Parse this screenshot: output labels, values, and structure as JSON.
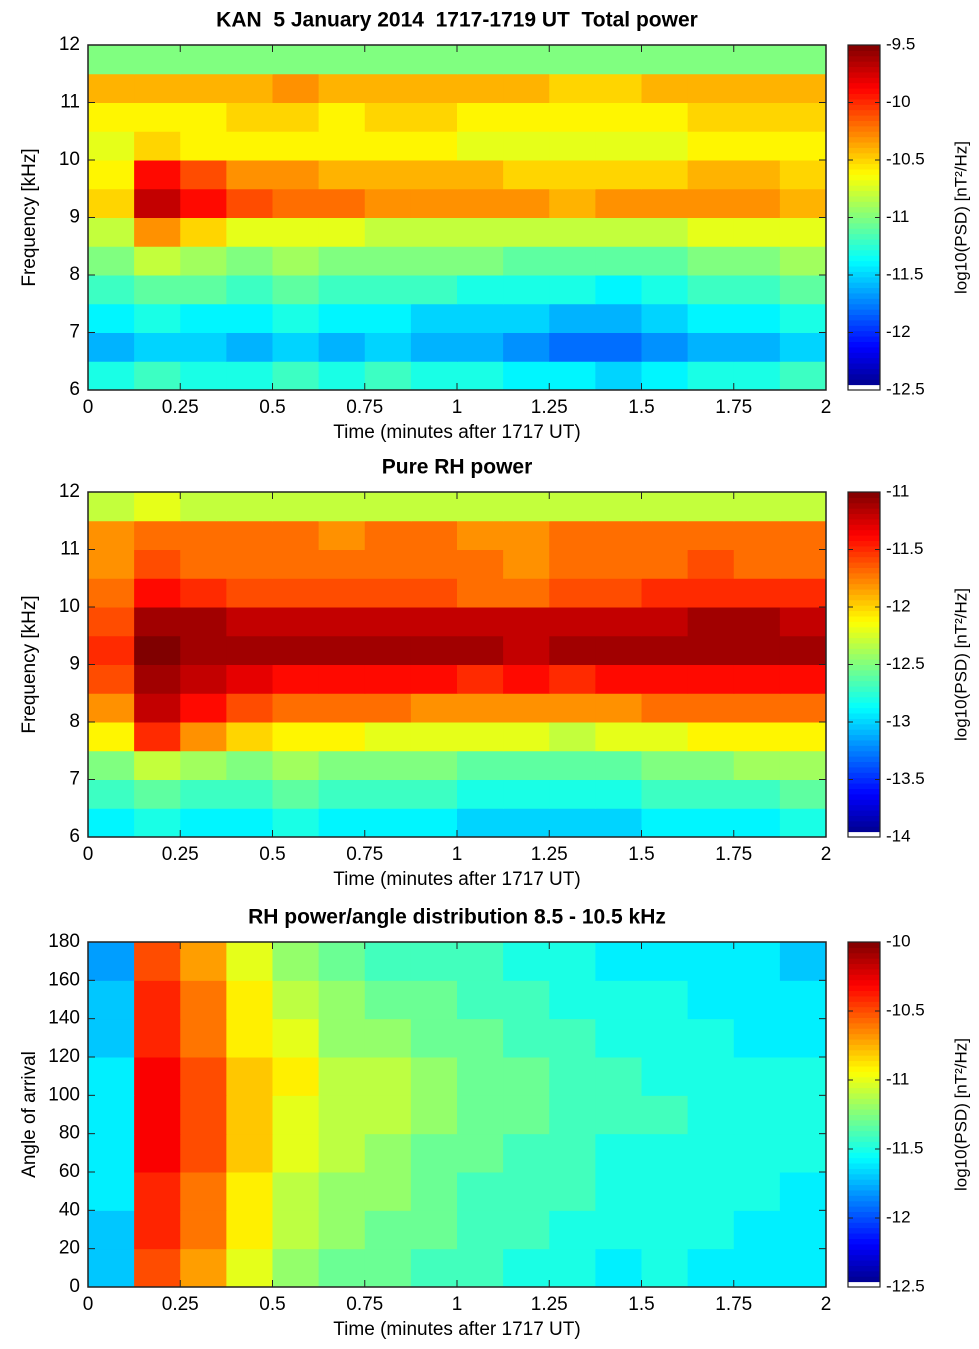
{
  "chart_data": [
    {
      "type": "heatmap",
      "title": "KAN  5 January 2014  1717-1719 UT  Total power",
      "xlabel": "Time (minutes after 1717 UT)",
      "ylabel": "Frequency [kHz]",
      "colorbar_label": "log10(PSD) [nT²/Hz]",
      "colormap": "jet",
      "xlim": [
        0,
        2
      ],
      "xticks": [
        0,
        0.25,
        0.5,
        0.75,
        1,
        1.25,
        1.5,
        1.75,
        2
      ],
      "ylim": [
        6,
        12
      ],
      "yticks": [
        6,
        7,
        8,
        9,
        10,
        11,
        12
      ],
      "clim": [
        -12.5,
        -9.5
      ],
      "cticks": [
        -12.5,
        -12,
        -11.5,
        -11,
        -10.5,
        -10,
        -9.5
      ],
      "x": [
        0.0625,
        0.1875,
        0.3125,
        0.4375,
        0.5625,
        0.6875,
        0.8125,
        0.9375,
        1.0625,
        1.1875,
        1.3125,
        1.4375,
        1.5625,
        1.6875,
        1.8125,
        1.9375
      ],
      "y": [
        6.25,
        6.75,
        7.25,
        7.75,
        8.25,
        8.75,
        9.25,
        9.75,
        10.25,
        10.75,
        11.25,
        11.75
      ],
      "z": [
        [
          -11.3,
          -11.2,
          -11.3,
          -11.3,
          -11.2,
          -11.3,
          -11.2,
          -11.3,
          -11.3,
          -11.4,
          -11.4,
          -11.5,
          -11.4,
          -11.3,
          -11.3,
          -11.2
        ],
        [
          -11.6,
          -11.5,
          -11.5,
          -11.6,
          -11.5,
          -11.6,
          -11.5,
          -11.6,
          -11.6,
          -11.7,
          -11.8,
          -11.8,
          -11.7,
          -11.6,
          -11.6,
          -11.5
        ],
        [
          -11.4,
          -11.3,
          -11.4,
          -11.4,
          -11.3,
          -11.4,
          -11.4,
          -11.5,
          -11.5,
          -11.5,
          -11.6,
          -11.6,
          -11.5,
          -11.4,
          -11.4,
          -11.3
        ],
        [
          -11.2,
          -11.1,
          -11.1,
          -11.2,
          -11.1,
          -11.2,
          -11.2,
          -11.2,
          -11.3,
          -11.3,
          -11.3,
          -11.4,
          -11.3,
          -11.2,
          -11.2,
          -11.1
        ],
        [
          -11.0,
          -10.8,
          -10.9,
          -11.0,
          -10.9,
          -11.0,
          -11.0,
          -11.0,
          -11.0,
          -11.1,
          -11.1,
          -11.1,
          -11.1,
          -11.0,
          -11.0,
          -10.9
        ],
        [
          -10.8,
          -10.3,
          -10.5,
          -10.7,
          -10.7,
          -10.7,
          -10.8,
          -10.8,
          -10.8,
          -10.8,
          -10.8,
          -10.8,
          -10.8,
          -10.7,
          -10.7,
          -10.7
        ],
        [
          -10.5,
          -9.7,
          -9.9,
          -10.1,
          -10.2,
          -10.2,
          -10.3,
          -10.3,
          -10.3,
          -10.3,
          -10.4,
          -10.3,
          -10.3,
          -10.3,
          -10.3,
          -10.4
        ],
        [
          -10.6,
          -9.9,
          -10.1,
          -10.3,
          -10.3,
          -10.4,
          -10.4,
          -10.4,
          -10.4,
          -10.5,
          -10.5,
          -10.5,
          -10.5,
          -10.4,
          -10.4,
          -10.5
        ],
        [
          -10.7,
          -10.5,
          -10.6,
          -10.6,
          -10.6,
          -10.6,
          -10.6,
          -10.6,
          -10.7,
          -10.7,
          -10.7,
          -10.7,
          -10.7,
          -10.6,
          -10.6,
          -10.6
        ],
        [
          -10.6,
          -10.6,
          -10.6,
          -10.5,
          -10.5,
          -10.6,
          -10.5,
          -10.5,
          -10.6,
          -10.6,
          -10.6,
          -10.6,
          -10.6,
          -10.5,
          -10.5,
          -10.5
        ],
        [
          -10.4,
          -10.4,
          -10.4,
          -10.4,
          -10.3,
          -10.4,
          -10.4,
          -10.4,
          -10.4,
          -10.4,
          -10.5,
          -10.5,
          -10.4,
          -10.4,
          -10.4,
          -10.4
        ],
        [
          -11.0,
          -11.0,
          -11.0,
          -11.0,
          -11.0,
          -11.0,
          -11.0,
          -11.0,
          -11.0,
          -11.0,
          -11.0,
          -11.0,
          -11.0,
          -11.0,
          -11.0,
          -11.0
        ]
      ]
    },
    {
      "type": "heatmap",
      "title": "Pure RH power",
      "xlabel": "Time (minutes after 1717 UT)",
      "ylabel": "Frequency [kHz]",
      "colorbar_label": "log10(PSD) [nT²/Hz]",
      "colormap": "jet",
      "xlim": [
        0,
        2
      ],
      "xticks": [
        0,
        0.25,
        0.5,
        0.75,
        1,
        1.25,
        1.5,
        1.75,
        2
      ],
      "ylim": [
        6,
        12
      ],
      "yticks": [
        6,
        7,
        8,
        9,
        10,
        11,
        12
      ],
      "clim": [
        -14,
        -11
      ],
      "cticks": [
        -14,
        -13.5,
        -13,
        -12.5,
        -12,
        -11.5,
        -11
      ],
      "x": [
        0.0625,
        0.1875,
        0.3125,
        0.4375,
        0.5625,
        0.6875,
        0.8125,
        0.9375,
        1.0625,
        1.1875,
        1.3125,
        1.4375,
        1.5625,
        1.6875,
        1.8125,
        1.9375
      ],
      "y": [
        6.25,
        6.75,
        7.25,
        7.75,
        8.25,
        8.75,
        9.25,
        9.75,
        10.25,
        10.75,
        11.25,
        11.75
      ],
      "z": [
        [
          -12.9,
          -12.8,
          -12.9,
          -12.9,
          -12.8,
          -12.9,
          -12.9,
          -12.9,
          -13.0,
          -13.0,
          -13.0,
          -13.0,
          -12.9,
          -12.9,
          -12.9,
          -12.8
        ],
        [
          -12.7,
          -12.6,
          -12.7,
          -12.7,
          -12.6,
          -12.7,
          -12.7,
          -12.7,
          -12.8,
          -12.8,
          -12.8,
          -12.8,
          -12.7,
          -12.7,
          -12.7,
          -12.6
        ],
        [
          -12.5,
          -12.3,
          -12.4,
          -12.5,
          -12.4,
          -12.5,
          -12.5,
          -12.5,
          -12.6,
          -12.6,
          -12.6,
          -12.6,
          -12.5,
          -12.5,
          -12.4,
          -12.4
        ],
        [
          -12.1,
          -11.5,
          -11.8,
          -12.0,
          -12.1,
          -12.1,
          -12.2,
          -12.2,
          -12.2,
          -12.2,
          -12.3,
          -12.2,
          -12.2,
          -12.1,
          -12.1,
          -12.1
        ],
        [
          -11.8,
          -11.2,
          -11.4,
          -11.6,
          -11.7,
          -11.7,
          -11.7,
          -11.8,
          -11.8,
          -11.8,
          -11.8,
          -11.8,
          -11.7,
          -11.7,
          -11.7,
          -11.7
        ],
        [
          -11.6,
          -11.1,
          -11.2,
          -11.3,
          -11.4,
          -11.4,
          -11.4,
          -11.4,
          -11.5,
          -11.4,
          -11.5,
          -11.4,
          -11.4,
          -11.4,
          -11.4,
          -11.4
        ],
        [
          -11.5,
          -11.0,
          -11.1,
          -11.1,
          -11.1,
          -11.1,
          -11.1,
          -11.1,
          -11.1,
          -11.2,
          -11.1,
          -11.1,
          -11.1,
          -11.1,
          -11.1,
          -11.1
        ],
        [
          -11.6,
          -11.1,
          -11.1,
          -11.2,
          -11.2,
          -11.2,
          -11.2,
          -11.2,
          -11.2,
          -11.2,
          -11.2,
          -11.2,
          -11.2,
          -11.1,
          -11.1,
          -11.2
        ],
        [
          -11.7,
          -11.4,
          -11.5,
          -11.6,
          -11.6,
          -11.6,
          -11.6,
          -11.6,
          -11.7,
          -11.7,
          -11.6,
          -11.6,
          -11.5,
          -11.5,
          -11.5,
          -11.5
        ],
        [
          -11.8,
          -11.6,
          -11.7,
          -11.7,
          -11.7,
          -11.7,
          -11.7,
          -11.7,
          -11.7,
          -11.8,
          -11.7,
          -11.7,
          -11.7,
          -11.6,
          -11.7,
          -11.7
        ],
        [
          -11.8,
          -11.7,
          -11.7,
          -11.7,
          -11.7,
          -11.8,
          -11.7,
          -11.7,
          -11.8,
          -11.8,
          -11.7,
          -11.7,
          -11.7,
          -11.7,
          -11.7,
          -11.7
        ],
        [
          -12.3,
          -12.2,
          -12.3,
          -12.3,
          -12.3,
          -12.3,
          -12.3,
          -12.3,
          -12.3,
          -12.3,
          -12.3,
          -12.3,
          -12.3,
          -12.3,
          -12.3,
          -12.3
        ]
      ]
    },
    {
      "type": "heatmap",
      "title": "RH power/angle distribution 8.5 - 10.5 kHz",
      "xlabel": "Time (minutes after 1717 UT)",
      "ylabel": "Angle of arrival",
      "colorbar_label": "log10(PSD) [nT²/Hz]",
      "colormap": "jet",
      "xlim": [
        0,
        2
      ],
      "xticks": [
        0,
        0.25,
        0.5,
        0.75,
        1,
        1.25,
        1.5,
        1.75,
        2
      ],
      "ylim": [
        0,
        180
      ],
      "yticks": [
        0,
        20,
        40,
        60,
        80,
        100,
        120,
        140,
        160,
        180
      ],
      "clim": [
        -12.5,
        -10
      ],
      "cticks": [
        -12.5,
        -12,
        -11.5,
        -11,
        -10.5,
        -10
      ],
      "x": [
        0.0625,
        0.1875,
        0.3125,
        0.4375,
        0.5625,
        0.6875,
        0.8125,
        0.9375,
        1.0625,
        1.1875,
        1.3125,
        1.4375,
        1.5625,
        1.6875,
        1.8125,
        1.9375
      ],
      "y": [
        10,
        30,
        50,
        70,
        90,
        110,
        130,
        150,
        170
      ],
      "z": [
        [
          -11.7,
          -10.5,
          -10.7,
          -11.0,
          -11.2,
          -11.3,
          -11.3,
          -11.4,
          -11.4,
          -11.5,
          -11.5,
          -11.6,
          -11.5,
          -11.6,
          -11.6,
          -11.6
        ],
        [
          -11.7,
          -10.4,
          -10.6,
          -10.9,
          -11.1,
          -11.2,
          -11.3,
          -11.3,
          -11.4,
          -11.4,
          -11.5,
          -11.5,
          -11.5,
          -11.5,
          -11.6,
          -11.6
        ],
        [
          -11.6,
          -10.4,
          -10.6,
          -10.9,
          -11.1,
          -11.2,
          -11.2,
          -11.3,
          -11.4,
          -11.4,
          -11.4,
          -11.5,
          -11.5,
          -11.5,
          -11.5,
          -11.6
        ],
        [
          -11.6,
          -10.3,
          -10.5,
          -10.8,
          -11.0,
          -11.1,
          -11.2,
          -11.3,
          -11.3,
          -11.4,
          -11.4,
          -11.5,
          -11.5,
          -11.5,
          -11.5,
          -11.5
        ],
        [
          -11.6,
          -10.3,
          -10.5,
          -10.8,
          -11.0,
          -11.1,
          -11.1,
          -11.2,
          -11.3,
          -11.3,
          -11.4,
          -11.4,
          -11.4,
          -11.5,
          -11.5,
          -11.5
        ],
        [
          -11.6,
          -10.3,
          -10.5,
          -10.8,
          -10.9,
          -11.1,
          -11.1,
          -11.2,
          -11.3,
          -11.3,
          -11.4,
          -11.4,
          -11.5,
          -11.5,
          -11.5,
          -11.5
        ],
        [
          -11.7,
          -10.4,
          -10.6,
          -10.9,
          -11.0,
          -11.2,
          -11.2,
          -11.3,
          -11.3,
          -11.4,
          -11.4,
          -11.5,
          -11.5,
          -11.5,
          -11.6,
          -11.6
        ],
        [
          -11.7,
          -10.4,
          -10.6,
          -10.9,
          -11.1,
          -11.2,
          -11.3,
          -11.3,
          -11.4,
          -11.4,
          -11.5,
          -11.5,
          -11.5,
          -11.6,
          -11.6,
          -11.6
        ],
        [
          -11.8,
          -10.5,
          -10.7,
          -11.0,
          -11.2,
          -11.3,
          -11.4,
          -11.4,
          -11.4,
          -11.5,
          -11.5,
          -11.6,
          -11.6,
          -11.6,
          -11.6,
          -11.7
        ]
      ]
    }
  ]
}
